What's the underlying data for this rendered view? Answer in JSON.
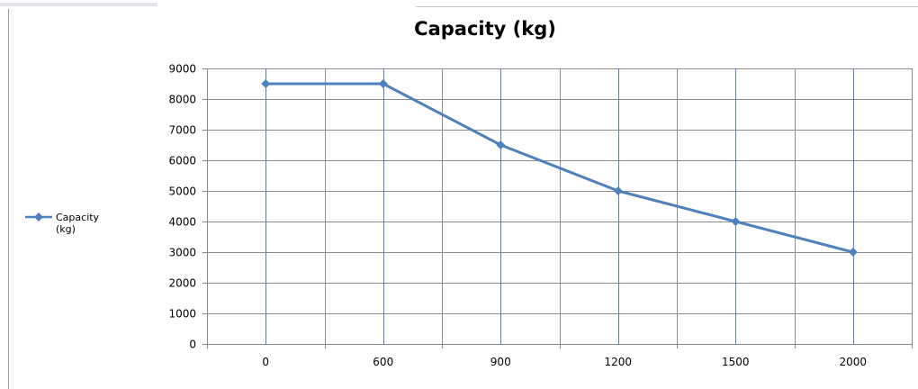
{
  "chart_data": {
    "type": "line",
    "title": "Capacity (kg)",
    "xlabel": "",
    "ylabel": "",
    "categories": [
      "0",
      "600",
      "900",
      "1200",
      "1500",
      "2000"
    ],
    "series": [
      {
        "name": "Capacity (kg)",
        "values": [
          8500,
          8500,
          6500,
          5000,
          4000,
          3000
        ]
      }
    ],
    "ylim": [
      0,
      9000
    ],
    "yticks": [
      0,
      1000,
      2000,
      3000,
      4000,
      5000,
      6000,
      7000,
      8000,
      9000
    ],
    "grid": true,
    "legend_position": "left",
    "legend_lines": [
      "Capacity",
      "(kg)"
    ],
    "colors": {
      "series": "#4f81bd",
      "grid": "#8c8c8c",
      "vertical_grid": "#4f81bd",
      "axis": "#868686"
    }
  }
}
